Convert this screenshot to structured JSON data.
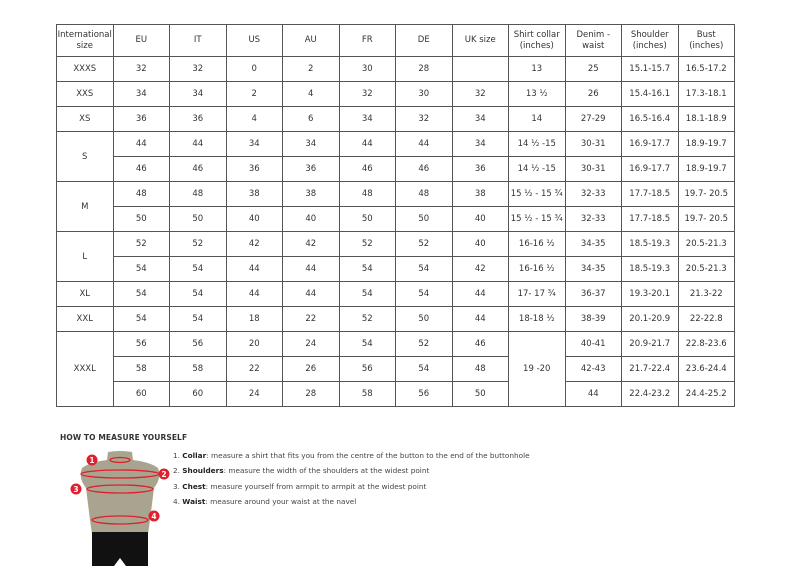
{
  "table": {
    "headers": [
      "International size",
      "EU",
      "IT",
      "US",
      "AU",
      "FR",
      "DE",
      "UK size",
      "Shirt collar (inches)",
      "Denim - waist",
      "Shoulder (inches)",
      "Bust (inches)"
    ],
    "groups": [
      {
        "size": "XXXS",
        "rows": [
          [
            "32",
            "32",
            "0",
            "2",
            "30",
            "28",
            "",
            "13",
            "25",
            "15.1-15.7",
            "16.5-17.2"
          ]
        ]
      },
      {
        "size": "XXS",
        "rows": [
          [
            "34",
            "34",
            "2",
            "4",
            "32",
            "30",
            "32",
            "13 ½",
            "26",
            "15.4-16.1",
            "17.3-18.1"
          ]
        ]
      },
      {
        "size": "XS",
        "rows": [
          [
            "36",
            "36",
            "4",
            "6",
            "34",
            "32",
            "34",
            "14",
            "27-29",
            "16.5-16.4",
            "18.1-18.9"
          ]
        ]
      },
      {
        "size": "S",
        "rows": [
          [
            "44",
            "44",
            "34",
            "34",
            "44",
            "44",
            "34",
            "14 ½ -15",
            "30-31",
            "16.9-17.7",
            "18.9-19.7"
          ],
          [
            "46",
            "46",
            "36",
            "36",
            "46",
            "46",
            "36",
            "14 ½ -15",
            "30-31",
            "16.9-17.7",
            "18.9-19.7"
          ]
        ]
      },
      {
        "size": "M",
        "rows": [
          [
            "48",
            "48",
            "38",
            "38",
            "48",
            "48",
            "38",
            "15 ½ - 15 ¾",
            "32-33",
            "17.7-18.5",
            "19.7- 20.5"
          ],
          [
            "50",
            "50",
            "40",
            "40",
            "50",
            "50",
            "40",
            "15 ½ - 15 ¾",
            "32-33",
            "17.7-18.5",
            "19.7- 20.5"
          ]
        ]
      },
      {
        "size": "L",
        "rows": [
          [
            "52",
            "52",
            "42",
            "42",
            "52",
            "52",
            "40",
            "16-16 ½",
            "34-35",
            "18.5-19.3",
            "20.5-21.3"
          ],
          [
            "54",
            "54",
            "44",
            "44",
            "54",
            "54",
            "42",
            "16-16 ½",
            "34-35",
            "18.5-19.3",
            "20.5-21.3"
          ]
        ]
      },
      {
        "size": "XL",
        "rows": [
          [
            "54",
            "54",
            "44",
            "44",
            "54",
            "54",
            "44",
            "17- 17 ¾",
            "36-37",
            "19.3-20.1",
            "21.3-22"
          ]
        ]
      },
      {
        "size": "XXL",
        "rows": [
          [
            "54",
            "54",
            "18",
            "22",
            "52",
            "50",
            "44",
            "18-18 ½",
            "38-39",
            "20.1-20.9",
            "22-22.8"
          ]
        ]
      },
      {
        "size": "XXXL",
        "collar": "19 -20",
        "rows": [
          [
            "56",
            "56",
            "20",
            "24",
            "54",
            "52",
            "46",
            null,
            "40-41",
            "20.9-21.7",
            "22.8-23.6"
          ],
          [
            "58",
            "58",
            "22",
            "26",
            "56",
            "54",
            "48",
            null,
            "42-43",
            "21.7-22.4",
            "23.6-24.4"
          ],
          [
            "60",
            "60",
            "24",
            "28",
            "58",
            "56",
            "50",
            null,
            "44",
            "22.4-23.2",
            "24.4-25.2"
          ]
        ]
      }
    ]
  },
  "measure": {
    "title": "HOW TO MEASURE YOURSELF",
    "markers": [
      "1",
      "2",
      "3",
      "4"
    ],
    "steps": [
      {
        "num": "1.",
        "label": "Collar",
        "text": ": measure a shirt that fits you from the centre of the button to the end of the buttonhole"
      },
      {
        "num": "2.",
        "label": "Shoulders",
        "text": ": measure the width of the shoulders at the widest point"
      },
      {
        "num": "3.",
        "label": "Chest",
        "text": ": measure yourself from armpit to armpit at the widest point"
      },
      {
        "num": "4.",
        "label": "Waist",
        "text": ": measure around your waist at the navel"
      }
    ],
    "colors": {
      "marker": "#e0202c",
      "torso": "#a8a48f",
      "shorts": "#111111"
    }
  }
}
